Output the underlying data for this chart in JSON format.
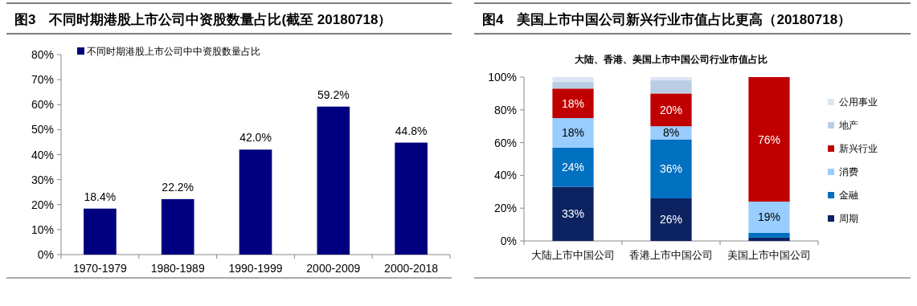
{
  "chart_data": [
    {
      "type": "bar",
      "title": "图3　不同时期港股上市公司中资股数量占比(截至 20180718）",
      "categories": [
        "1970-1979",
        "1980-1989",
        "1990-1999",
        "2000-2009",
        "2000-2018"
      ],
      "series": [
        {
          "name": "不同时期港股上市公司中中资股数量占比",
          "color": "#000080",
          "values": [
            18.4,
            22.2,
            42.0,
            59.2,
            44.8
          ],
          "value_labels": [
            "18.4%",
            "22.2%",
            "42.0%",
            "59.2%",
            "44.8%"
          ]
        }
      ],
      "ylim": [
        0,
        80
      ],
      "yticks": [
        {
          "value": 0,
          "label": "0%"
        },
        {
          "value": 10,
          "label": "10%"
        },
        {
          "value": 20,
          "label": "20%"
        },
        {
          "value": 30,
          "label": "30%"
        },
        {
          "value": 40,
          "label": "40%"
        },
        {
          "value": 50,
          "label": "50%"
        },
        {
          "value": 60,
          "label": "60%"
        },
        {
          "value": 70,
          "label": "70%"
        },
        {
          "value": 80,
          "label": "80%"
        }
      ],
      "grid": false,
      "legend": "top left"
    },
    {
      "type": "bar",
      "stacked": true,
      "title": "图4　美国上市中国公司新兴行业市值占比更高（20180718）",
      "subtitle": "大陆、香港、美国上市中国公司行业市值占比",
      "categories": [
        "大陆上市中国公司",
        "香港上市中国公司",
        "美国上市中国公司"
      ],
      "series": [
        {
          "name": "周期",
          "color": "#0d2361",
          "values": [
            33,
            26,
            2
          ],
          "value_labels": [
            "33%",
            "26%",
            null
          ]
        },
        {
          "name": "金融",
          "color": "#0070c0",
          "values": [
            24,
            36,
            3
          ],
          "value_labels": [
            "24%",
            "36%",
            null
          ]
        },
        {
          "name": "消费",
          "color": "#99ccff",
          "values": [
            18,
            8,
            19
          ],
          "value_labels": [
            "18%",
            "8%",
            "19%"
          ]
        },
        {
          "name": "新兴行业",
          "color": "#c00000",
          "values": [
            18,
            20,
            76
          ],
          "value_labels": [
            "18%",
            "20%",
            "76%"
          ]
        },
        {
          "name": "地产",
          "color": "#b9cde5",
          "values": [
            4,
            8,
            0
          ]
        },
        {
          "name": "公用事业",
          "color": "#dce6f2",
          "values": [
            3,
            2,
            0
          ]
        }
      ],
      "ylim": [
        0,
        100
      ],
      "yticks": [
        {
          "value": 0,
          "label": "0%"
        },
        {
          "value": 20,
          "label": "20%"
        },
        {
          "value": 40,
          "label": "40%"
        },
        {
          "value": 60,
          "label": "60%"
        },
        {
          "value": 80,
          "label": "80%"
        },
        {
          "value": 100,
          "label": "100%"
        }
      ],
      "grid": false,
      "legend": "right"
    }
  ]
}
